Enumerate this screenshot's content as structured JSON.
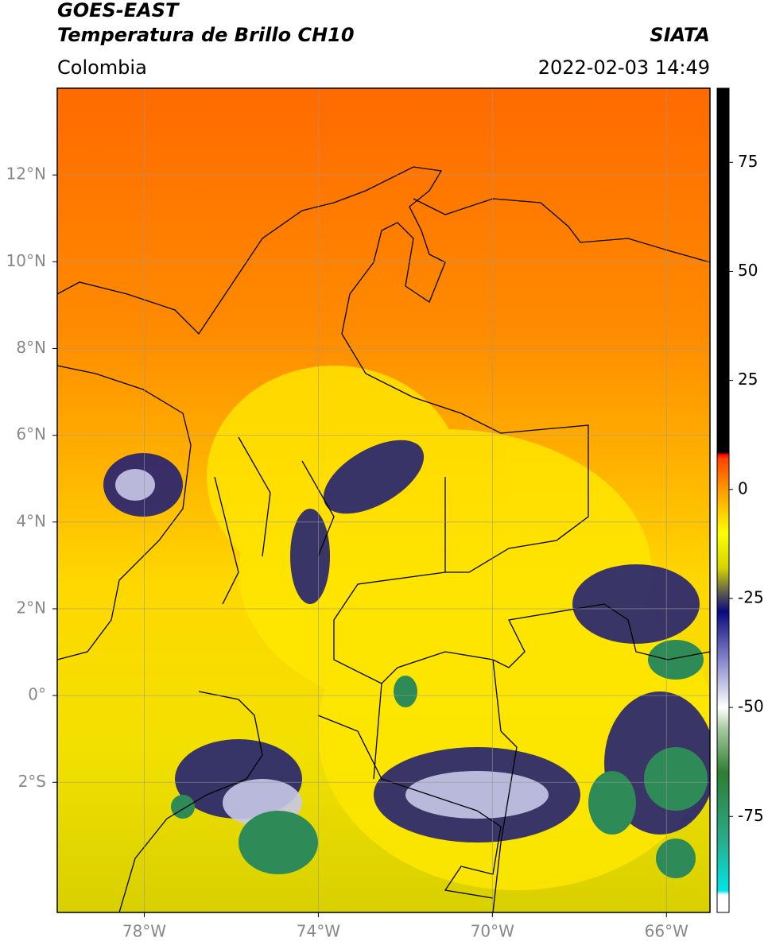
{
  "header": {
    "satellite": "GOES-EAST",
    "product": "Temperatura de Brillo CH10",
    "region": "Colombia",
    "source": "SIATA",
    "datetime": "2022-02-03 14:49"
  },
  "map": {
    "lonlim": [
      -80,
      -65
    ],
    "latlim": [
      -5,
      14
    ],
    "lonticks": [
      {
        "value": -78,
        "label": "78°W"
      },
      {
        "value": -74,
        "label": "74°W"
      },
      {
        "value": -70,
        "label": "70°W"
      },
      {
        "value": -66,
        "label": "66°W"
      }
    ],
    "latticks": [
      {
        "value": 12,
        "label": "12°N"
      },
      {
        "value": 10,
        "label": "10°N"
      },
      {
        "value": 8,
        "label": "8°N"
      },
      {
        "value": 6,
        "label": "6°N"
      },
      {
        "value": 4,
        "label": "4°N"
      },
      {
        "value": 2,
        "label": "2°N"
      },
      {
        "value": 0,
        "label": "0°"
      },
      {
        "value": -2,
        "label": "2°S"
      }
    ],
    "grid": true
  },
  "colorbar": {
    "lim": [
      -97,
      92
    ],
    "ticks": [
      -75,
      -50,
      -25,
      0,
      25,
      50,
      75
    ],
    "stops": [
      {
        "value": -97,
        "color": "#ffffff"
      },
      {
        "value": -93,
        "color": "#ffffff"
      },
      {
        "value": -92,
        "color": "#00e5e5"
      },
      {
        "value": -80,
        "color": "#2aaa88"
      },
      {
        "value": -65,
        "color": "#2e7d32"
      },
      {
        "value": -55,
        "color": "#a5c8a0"
      },
      {
        "value": -50,
        "color": "#ffffff"
      },
      {
        "value": -40,
        "color": "#9090d0"
      },
      {
        "value": -28,
        "color": "#0a0a80"
      },
      {
        "value": -24,
        "color": "#555555"
      },
      {
        "value": -18,
        "color": "#d4d400"
      },
      {
        "value": -10,
        "color": "#ffff00"
      },
      {
        "value": 0,
        "color": "#ff9900"
      },
      {
        "value": 7,
        "color": "#ff4400"
      },
      {
        "value": 8,
        "color": "#ff0000"
      },
      {
        "value": 8.5,
        "color": "#000000"
      },
      {
        "value": 92,
        "color": "#000000"
      }
    ]
  }
}
